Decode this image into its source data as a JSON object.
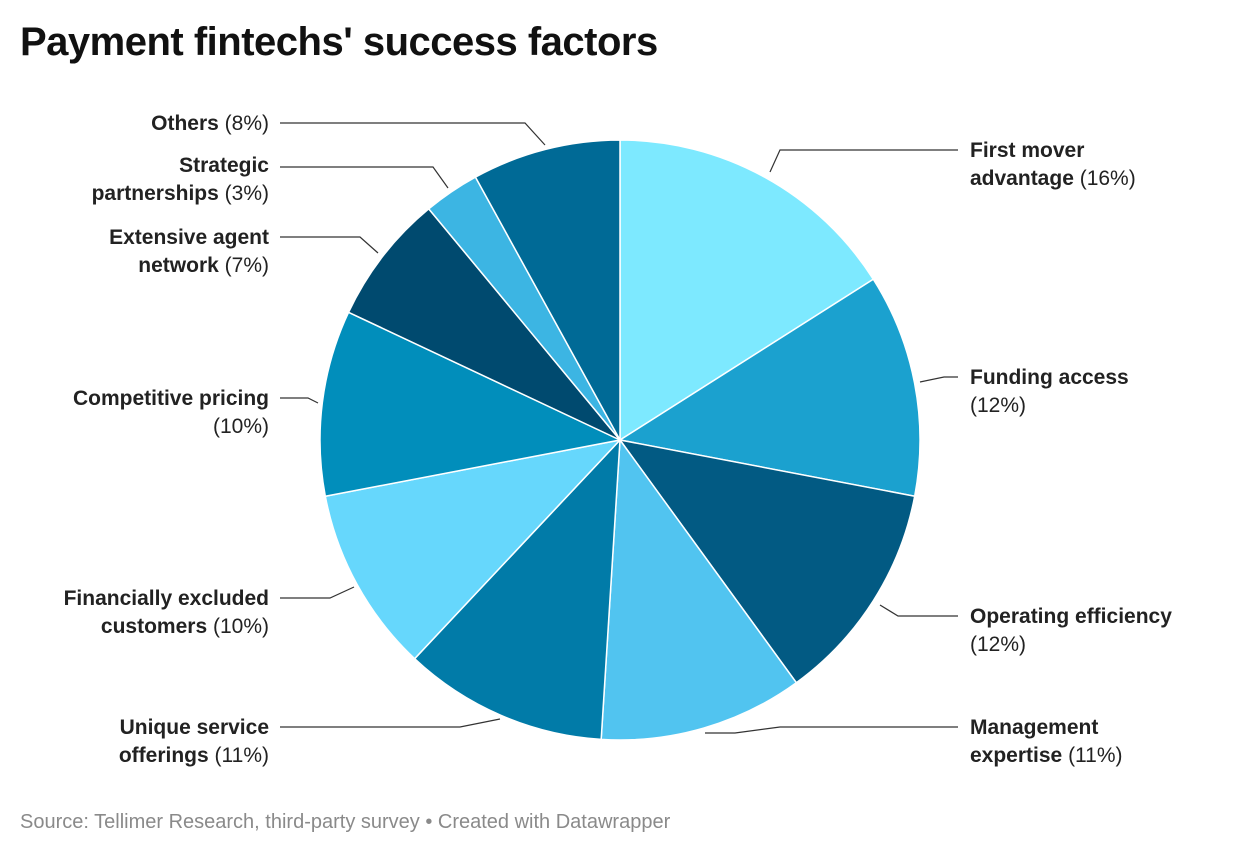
{
  "title": "Payment fintechs' success factors",
  "source": "Source: Tellimer Research, third-party survey • Created with Datawrapper",
  "chart_data": {
    "type": "pie",
    "title": "Payment fintechs' success factors",
    "unit": "%",
    "slices": [
      {
        "name": "First mover advantage",
        "value": 16,
        "color": "#7de9ff"
      },
      {
        "name": "Funding access",
        "value": 12,
        "color": "#1ba1cf"
      },
      {
        "name": "Operating efficiency",
        "value": 12,
        "color": "#025a83"
      },
      {
        "name": "Management expertise",
        "value": 11,
        "color": "#51c4f0"
      },
      {
        "name": "Unique service offerings",
        "value": 11,
        "color": "#017ba8"
      },
      {
        "name": "Financially excluded customers",
        "value": 10,
        "color": "#66d7fc"
      },
      {
        "name": "Competitive pricing",
        "value": 10,
        "color": "#018ebb"
      },
      {
        "name": "Extensive agent network",
        "value": 7,
        "color": "#004a6f"
      },
      {
        "name": "Strategic partnerships",
        "value": 3,
        "color": "#3cb5e3"
      },
      {
        "name": "Others",
        "value": 8,
        "color": "#006a96"
      }
    ],
    "labels": [
      {
        "lines": [
          [
            "First mover",
            ""
          ],
          [
            "advantage",
            "(16%)"
          ]
        ]
      },
      {
        "lines": [
          [
            "Funding access",
            ""
          ],
          [
            "",
            "(12%)"
          ]
        ]
      },
      {
        "lines": [
          [
            "Operating efficiency",
            ""
          ],
          [
            "",
            "(12%)"
          ]
        ]
      },
      {
        "lines": [
          [
            "Management",
            ""
          ],
          [
            "expertise",
            "(11%)"
          ]
        ]
      },
      {
        "lines": [
          [
            "Unique service",
            ""
          ],
          [
            "offerings",
            "(11%)"
          ]
        ]
      },
      {
        "lines": [
          [
            "Financially excluded",
            ""
          ],
          [
            "customers",
            "(10%)"
          ]
        ]
      },
      {
        "lines": [
          [
            "Competitive pricing",
            ""
          ],
          [
            "",
            "(10%)"
          ]
        ]
      },
      {
        "lines": [
          [
            "Extensive agent",
            ""
          ],
          [
            "network",
            "(7%)"
          ]
        ]
      },
      {
        "lines": [
          [
            "Strategic",
            ""
          ],
          [
            "partnerships",
            "(3%)"
          ]
        ]
      },
      {
        "lines": [
          [
            "Others",
            "(8%)"
          ]
        ]
      }
    ]
  }
}
